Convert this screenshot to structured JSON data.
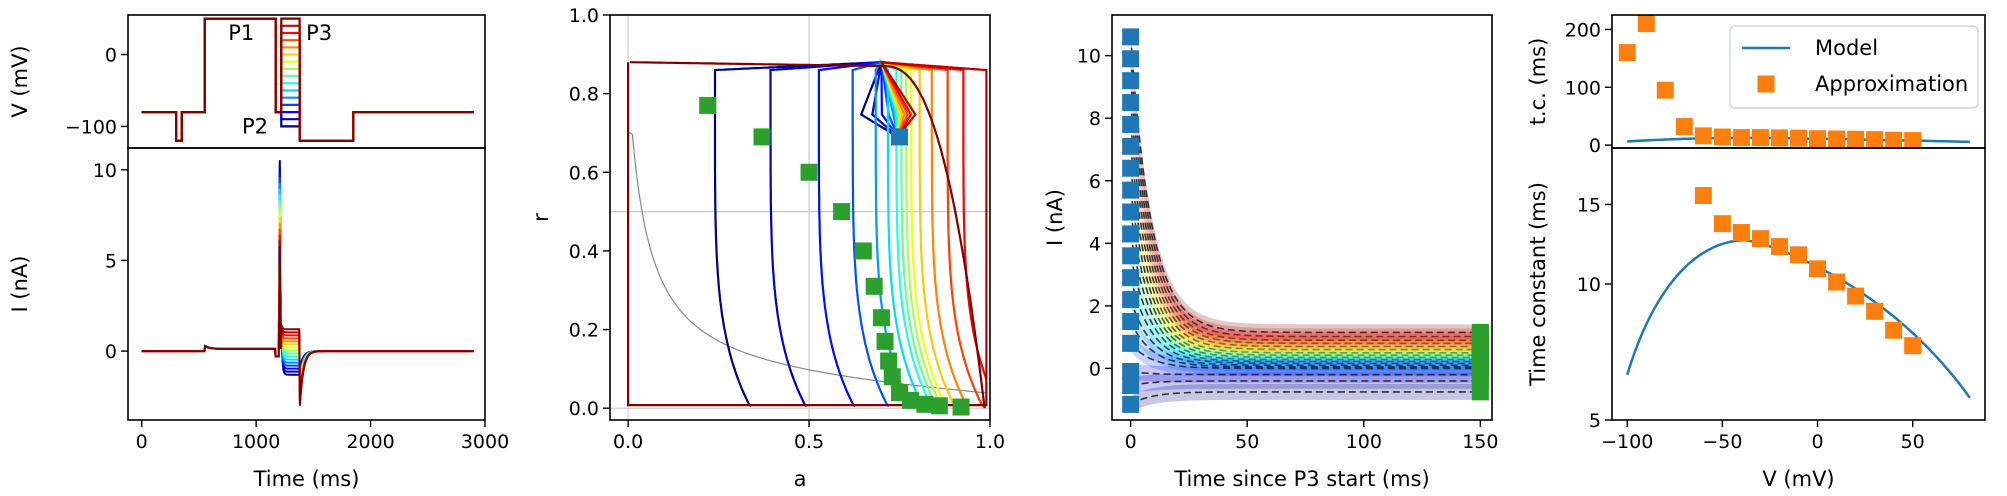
{
  "chart_data": [
    {
      "id": "a",
      "type": "line",
      "panels": [
        {
          "name": "voltage",
          "ylabel": "V (mV)",
          "ylim": [
            -130,
            55
          ],
          "yticks": [
            0,
            -100
          ],
          "yticklabels": [
            "0",
            "−100"
          ],
          "annotations": [
            "P1",
            "P2",
            "P3"
          ],
          "protocol": {
            "holding_mV": -80,
            "p1_mV": 50,
            "p2_mV": -80,
            "p3_levels_mV": [
              -100,
              -90,
              -80,
              -70,
              -60,
              -50,
              -40,
              -30,
              -20,
              -10,
              0,
              10,
              20,
              30,
              40,
              50
            ],
            "prestep_mV": -120,
            "prestep_ms": [
              300,
              350
            ],
            "p1_ms": [
              550,
              1170
            ],
            "p2_ms": [
              1170,
              1220
            ],
            "p3_ms": [
              1220,
              1380
            ],
            "post_mV": -120,
            "post_ms": [
              1380,
              1850
            ],
            "end_ms": 2900
          }
        },
        {
          "name": "current",
          "ylabel": "I (nA)",
          "ylim": [
            -3.8,
            11.2
          ],
          "yticks": [
            0,
            5,
            10
          ],
          "yticklabels": [
            "0",
            "5",
            "10"
          ],
          "peak_nA": 10.6,
          "p3_tail_max_nA": 1.2,
          "p3_tail_min_nA": -1.3,
          "post_min_nA": -3.3
        }
      ],
      "xlabel": "Time (ms)",
      "xlim": [
        -120,
        3000
      ],
      "xticks": [
        0,
        1000,
        2000,
        3000
      ],
      "xticklabels": [
        "0",
        "1000",
        "2000",
        "3000"
      ]
    },
    {
      "id": "b",
      "type": "line",
      "xlabel": "a",
      "ylabel": "r",
      "xlim": [
        -0.05,
        1.0
      ],
      "ylim": [
        -0.03,
        1.0
      ],
      "xticks": [
        0.0,
        0.5,
        1.0
      ],
      "xticklabels": [
        "0.0",
        "0.5",
        "1.0"
      ],
      "yticks": [
        0.0,
        0.2,
        0.4,
        0.6,
        0.8,
        1.0
      ],
      "yticklabels": [
        "0.0",
        "0.2",
        "0.4",
        "0.6",
        "0.8",
        "1.0"
      ],
      "grid": true,
      "approximation_points": {
        "a": [
          0.22,
          0.37,
          0.5,
          0.59,
          0.65,
          0.68,
          0.7,
          0.71,
          0.72,
          0.73,
          0.75,
          0.78,
          0.82,
          0.86,
          0.92
        ],
        "r": [
          0.77,
          0.69,
          0.6,
          0.5,
          0.4,
          0.31,
          0.23,
          0.17,
          0.12,
          0.08,
          0.04,
          0.02,
          0.01,
          0.006,
          0.003
        ]
      },
      "start_point": {
        "a": 0.75,
        "r": 0.69
      },
      "top_plateau_r": 0.88
    },
    {
      "id": "c",
      "type": "line",
      "xlabel": "Time since P3 start (ms)",
      "ylabel": "I (nA)",
      "xlim": [
        -8,
        155
      ],
      "ylim": [
        -1.65,
        11.3
      ],
      "xticks": [
        0,
        50,
        100,
        150
      ],
      "xticklabels": [
        "0",
        "50",
        "100",
        "150"
      ],
      "yticks": [
        0,
        2,
        4,
        6,
        8,
        10
      ],
      "yticklabels": [
        "0",
        "2",
        "4",
        "6",
        "8",
        "10"
      ],
      "start_values_nA": [
        10.6,
        9.9,
        9.2,
        8.5,
        7.8,
        7.1,
        6.4,
        5.7,
        5.0,
        4.3,
        3.6,
        2.9,
        2.2,
        1.5,
        0.8,
        -0.1,
        -0.55,
        -1.15
      ],
      "end_values_nA": [
        1.15,
        1.02,
        0.9,
        0.8,
        0.7,
        0.6,
        0.5,
        0.42,
        0.35,
        0.28,
        0.22,
        0.16,
        0.1,
        0.05,
        0.0,
        -0.2,
        -0.4,
        -0.75
      ]
    },
    {
      "id": "d",
      "type": "scatter",
      "panels": [
        {
          "name": "top",
          "ylabel": "t.c. (ms)",
          "ylim": [
            -5,
            225
          ],
          "yticks": [
            0,
            100,
            200
          ],
          "yticklabels": [
            "0",
            "100",
            "200"
          ],
          "approximation": {
            "V": [
              -100,
              -90,
              -80,
              -70,
              -60,
              -50,
              -40,
              -30,
              -20,
              -10,
              0,
              10,
              20,
              30,
              40,
              50
            ],
            "tc": [
              160,
              210,
              95,
              32,
              16,
              14,
              13,
              13,
              12.5,
              12,
              11,
              10.5,
              10,
              9.5,
              8.5,
              7.8
            ]
          }
        },
        {
          "name": "bottom",
          "ylabel": "Time constant (ms)",
          "yscale": "log",
          "ylim": [
            5,
            20
          ],
          "yticks": [
            5,
            10,
            15
          ],
          "yticklabels": [
            "5",
            "10",
            "15"
          ],
          "approximation": {
            "V": [
              -60,
              -50,
              -40,
              -30,
              -20,
              -10,
              0,
              10,
              20,
              30,
              40,
              50
            ],
            "tc": [
              15.7,
              13.6,
              13.0,
              12.6,
              12.1,
              11.6,
              10.8,
              10.1,
              9.4,
              8.7,
              7.9,
              7.3
            ]
          }
        }
      ],
      "xlabel": "V (mV)",
      "xlim": [
        -108,
        88
      ],
      "xticks": [
        -100,
        -50,
        0,
        50
      ],
      "xticklabels": [
        "−100",
        "−50",
        "0",
        "50"
      ],
      "legend": {
        "placement": "top-right",
        "entries": [
          "Model",
          "Approximation"
        ]
      },
      "colors": {
        "model": "#1f77b4",
        "approximation": "#ff7f0e"
      }
    }
  ]
}
